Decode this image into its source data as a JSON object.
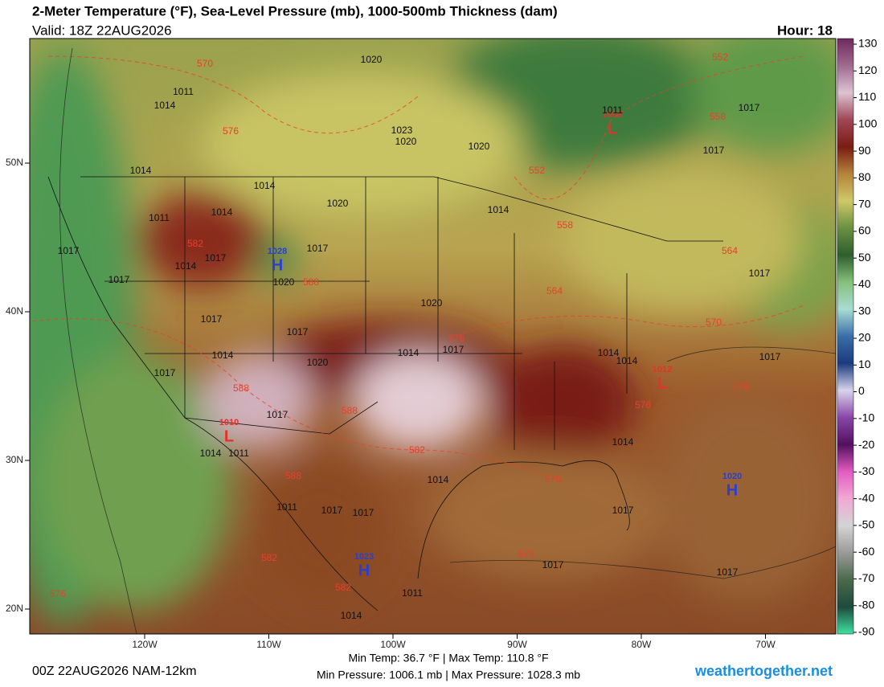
{
  "header": {
    "title": "2-Meter Temperature (°F), Sea-Level Pressure (mb), 1000-500mb Thickness (dam)",
    "valid": "Valid: 18Z 22AUG2026",
    "hour": "Hour: 18"
  },
  "map": {
    "lon_ticks": [
      {
        "value": -120,
        "label": "120W"
      },
      {
        "value": -110,
        "label": "110W"
      },
      {
        "value": -100,
        "label": "100W"
      },
      {
        "value": -90,
        "label": "90W"
      },
      {
        "value": -80,
        "label": "80W"
      },
      {
        "value": -70,
        "label": "70W"
      }
    ],
    "lat_ticks": [
      {
        "value": 50,
        "label": "50N"
      },
      {
        "value": 40,
        "label": "40N"
      },
      {
        "value": 30,
        "label": "30N"
      },
      {
        "value": 20,
        "label": "20N"
      }
    ],
    "centers": [
      {
        "letter": "H",
        "pressure": 1028,
        "color": "#2a3fd0"
      },
      {
        "letter": "H",
        "pressure": 1020,
        "color": "#2a3fd0"
      },
      {
        "letter": "H",
        "pressure": 1023,
        "color": "#2a3fd0"
      },
      {
        "letter": "L",
        "pressure": 1008,
        "color": "#e8302a"
      },
      {
        "letter": "L",
        "pressure": 1012,
        "color": "#e8302a"
      },
      {
        "letter": "L",
        "pressure": 1010,
        "color": "#e8302a"
      }
    ],
    "pressure_labels": [
      1011,
      1014,
      1014,
      1017,
      1017,
      1011,
      1014,
      1014,
      1020,
      1017,
      1014,
      1020,
      1020,
      1023,
      1020,
      1020,
      1017,
      1020,
      1017,
      1017,
      1014,
      1017,
      1014,
      1017,
      1017,
      1014,
      1020,
      1011,
      1014,
      1011,
      1017,
      1017,
      1014,
      1014,
      1011,
      1017,
      1017,
      1014,
      1017,
      1014,
      1017,
      1017,
      1011,
      1014,
      1017,
      1017
    ],
    "thickness_labels": [
      570,
      576,
      582,
      588,
      576,
      564,
      558,
      552,
      552,
      558,
      564,
      570,
      576,
      576,
      588,
      588,
      582,
      588,
      582,
      582,
      576,
      576,
      576
    ]
  },
  "colorbar": {
    "ticks": [
      130,
      120,
      110,
      100,
      90,
      80,
      70,
      60,
      50,
      40,
      30,
      20,
      10,
      0,
      -10,
      -20,
      -30,
      -40,
      -50,
      -60,
      -70,
      -80,
      -90
    ],
    "colors": [
      "#6e2a5e",
      "#a06a8e",
      "#dcc4d2",
      "#a04656",
      "#7a1c12",
      "#b4843a",
      "#cfc868",
      "#6a9040",
      "#2e5e2e",
      "#86c07a",
      "#a8dcd4",
      "#3a6ea8",
      "#1c3a7e",
      "#d8d4ec",
      "#8a46a8",
      "#52105e",
      "#e25cc0",
      "#f2a8d4",
      "#d4d4d4",
      "#9a9a9a",
      "#4a6a4a",
      "#1e4a3c",
      "#3ee2a0"
    ]
  },
  "footer": {
    "run": "00Z 22AUG2026 NAM-12km",
    "temps": "Min Temp:  36.7 °F | Max Temp: 110.8 °F",
    "pressures": "Min Pressure: 1006.1 mb | Max Pressure: 1028.3 mb",
    "site": "weathertogether.net"
  }
}
